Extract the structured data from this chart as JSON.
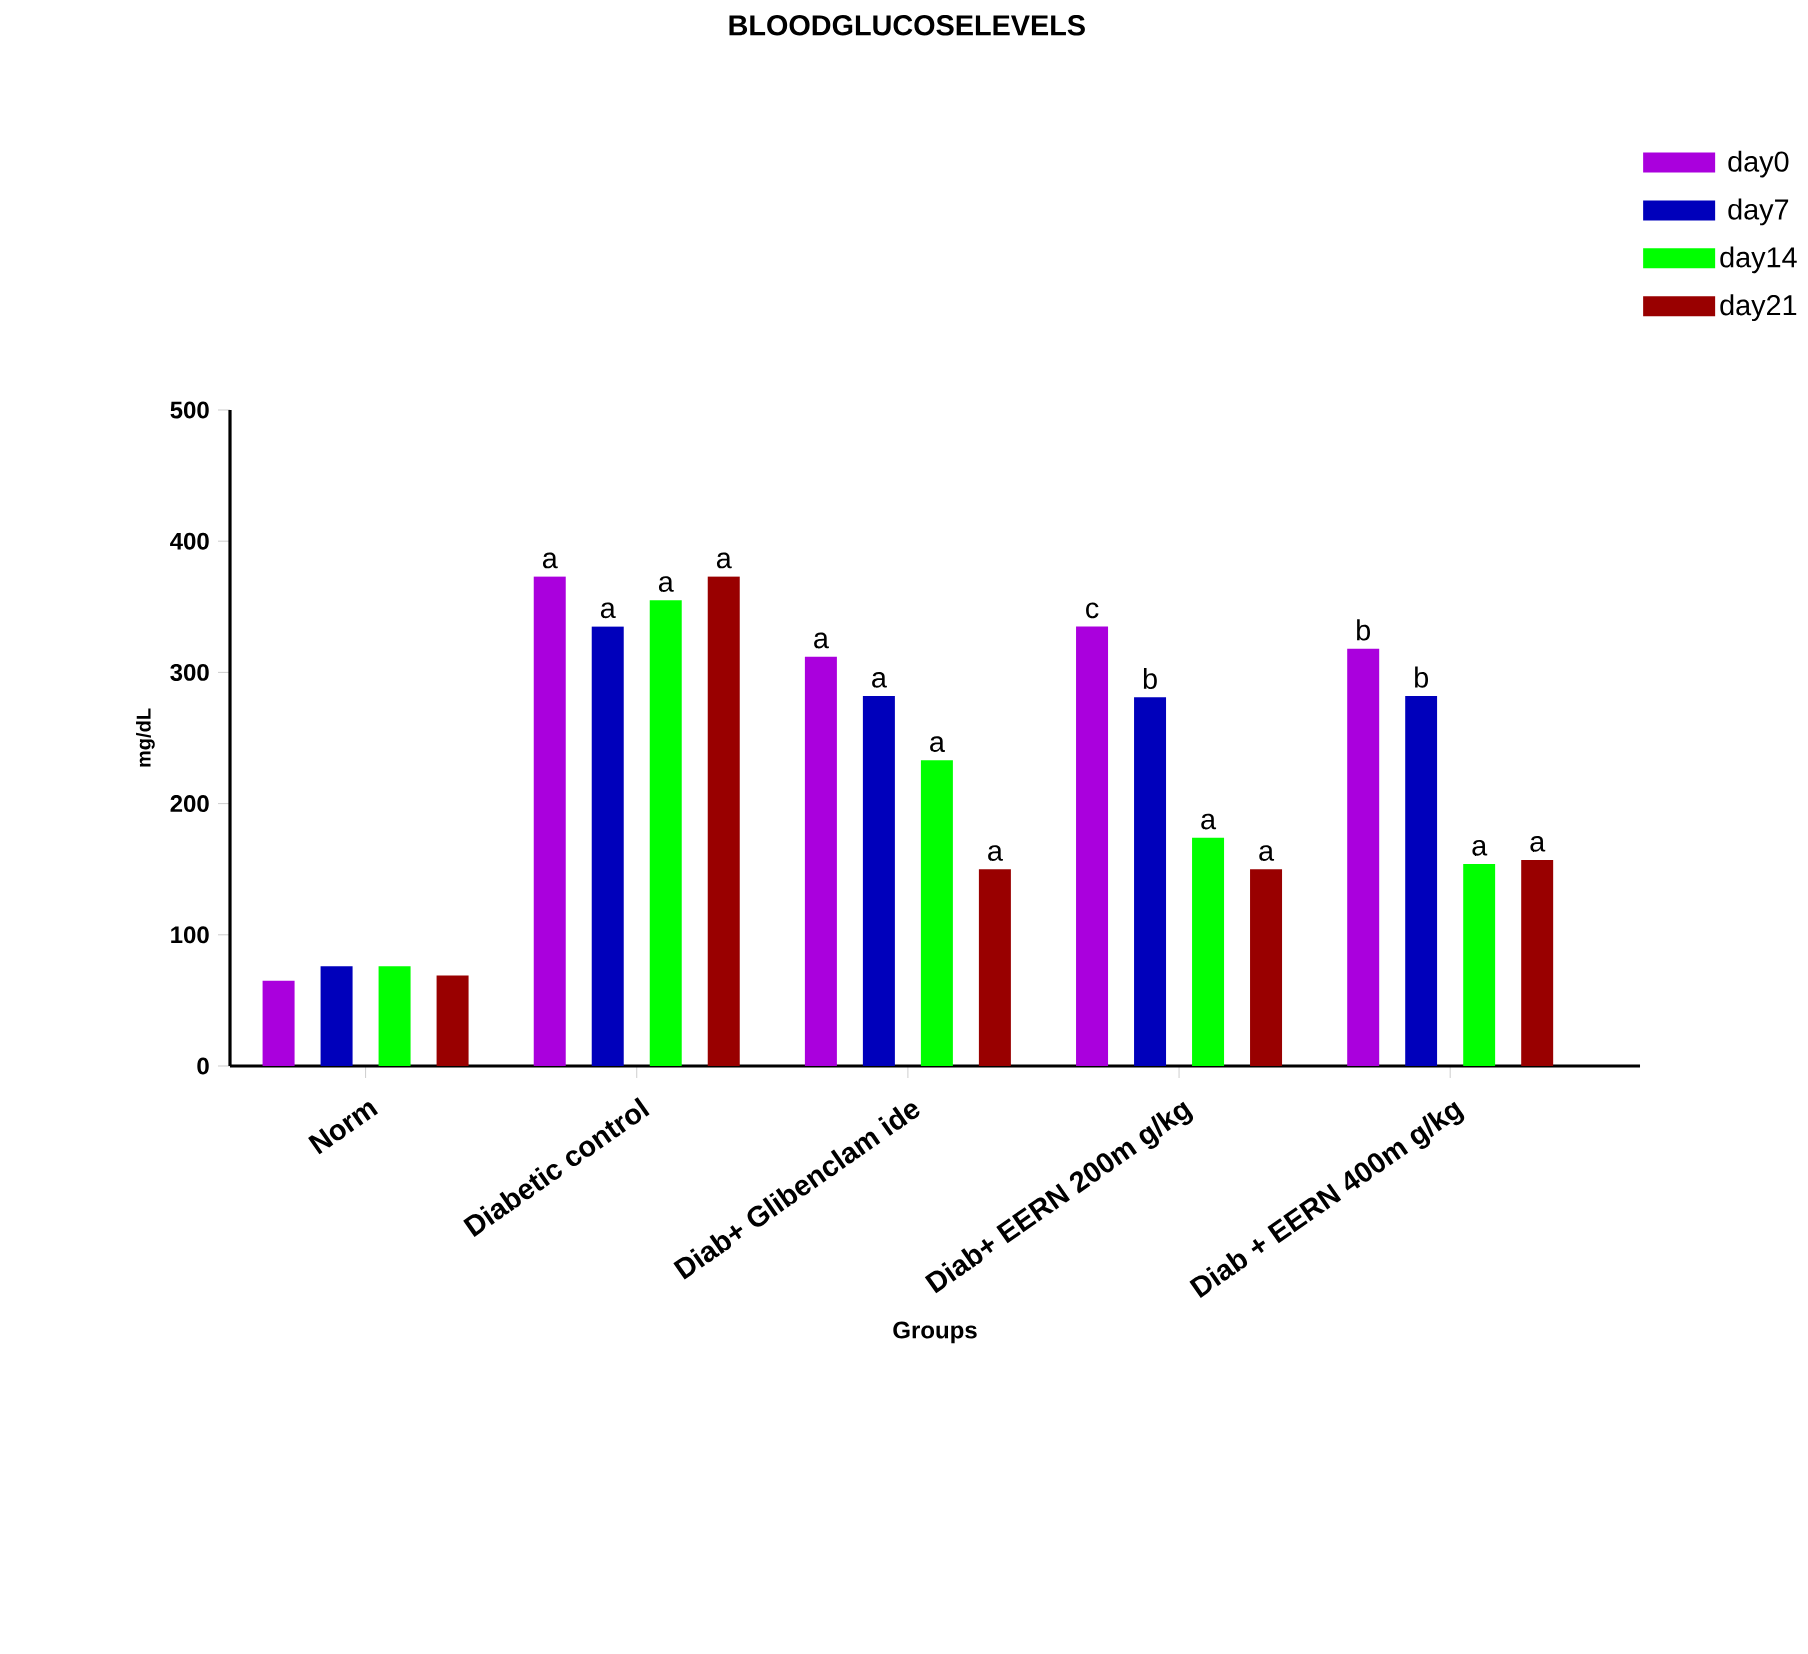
{
  "chart_data": {
    "type": "bar",
    "title": "BLOODGLUCOSELEVELS",
    "xlabel": "Groups",
    "ylabel": "mg/dL",
    "categories": [
      "Norm",
      "Diabetic control",
      "Diab+ Glibenclam ide",
      "Diab+ EERN 200m g/kg",
      "Diab + EERN 400m g/kg"
    ],
    "series": [
      {
        "name": "day0",
        "color": "#aa00dd",
        "values": [
          65,
          373,
          312,
          335,
          318
        ],
        "value_labels": [
          null,
          "a",
          "a",
          "c",
          "b"
        ]
      },
      {
        "name": "day7",
        "color": "#0000bb",
        "values": [
          76,
          335,
          282,
          281,
          282
        ],
        "value_labels": [
          null,
          "a",
          "a",
          "b",
          "b"
        ]
      },
      {
        "name": "day14",
        "color": "#00ff00",
        "values": [
          76,
          355,
          233,
          174,
          154
        ],
        "value_labels": [
          null,
          "a",
          "a",
          "a",
          "a"
        ]
      },
      {
        "name": "day21",
        "color": "#990000",
        "values": [
          69,
          373,
          150,
          150,
          157
        ],
        "value_labels": [
          null,
          "a",
          "a",
          "a",
          "a"
        ]
      }
    ],
    "ylim": [
      0,
      500
    ],
    "yticks": [
      0,
      100,
      200,
      300,
      400,
      500
    ],
    "grid": false,
    "legend": "top right"
  }
}
